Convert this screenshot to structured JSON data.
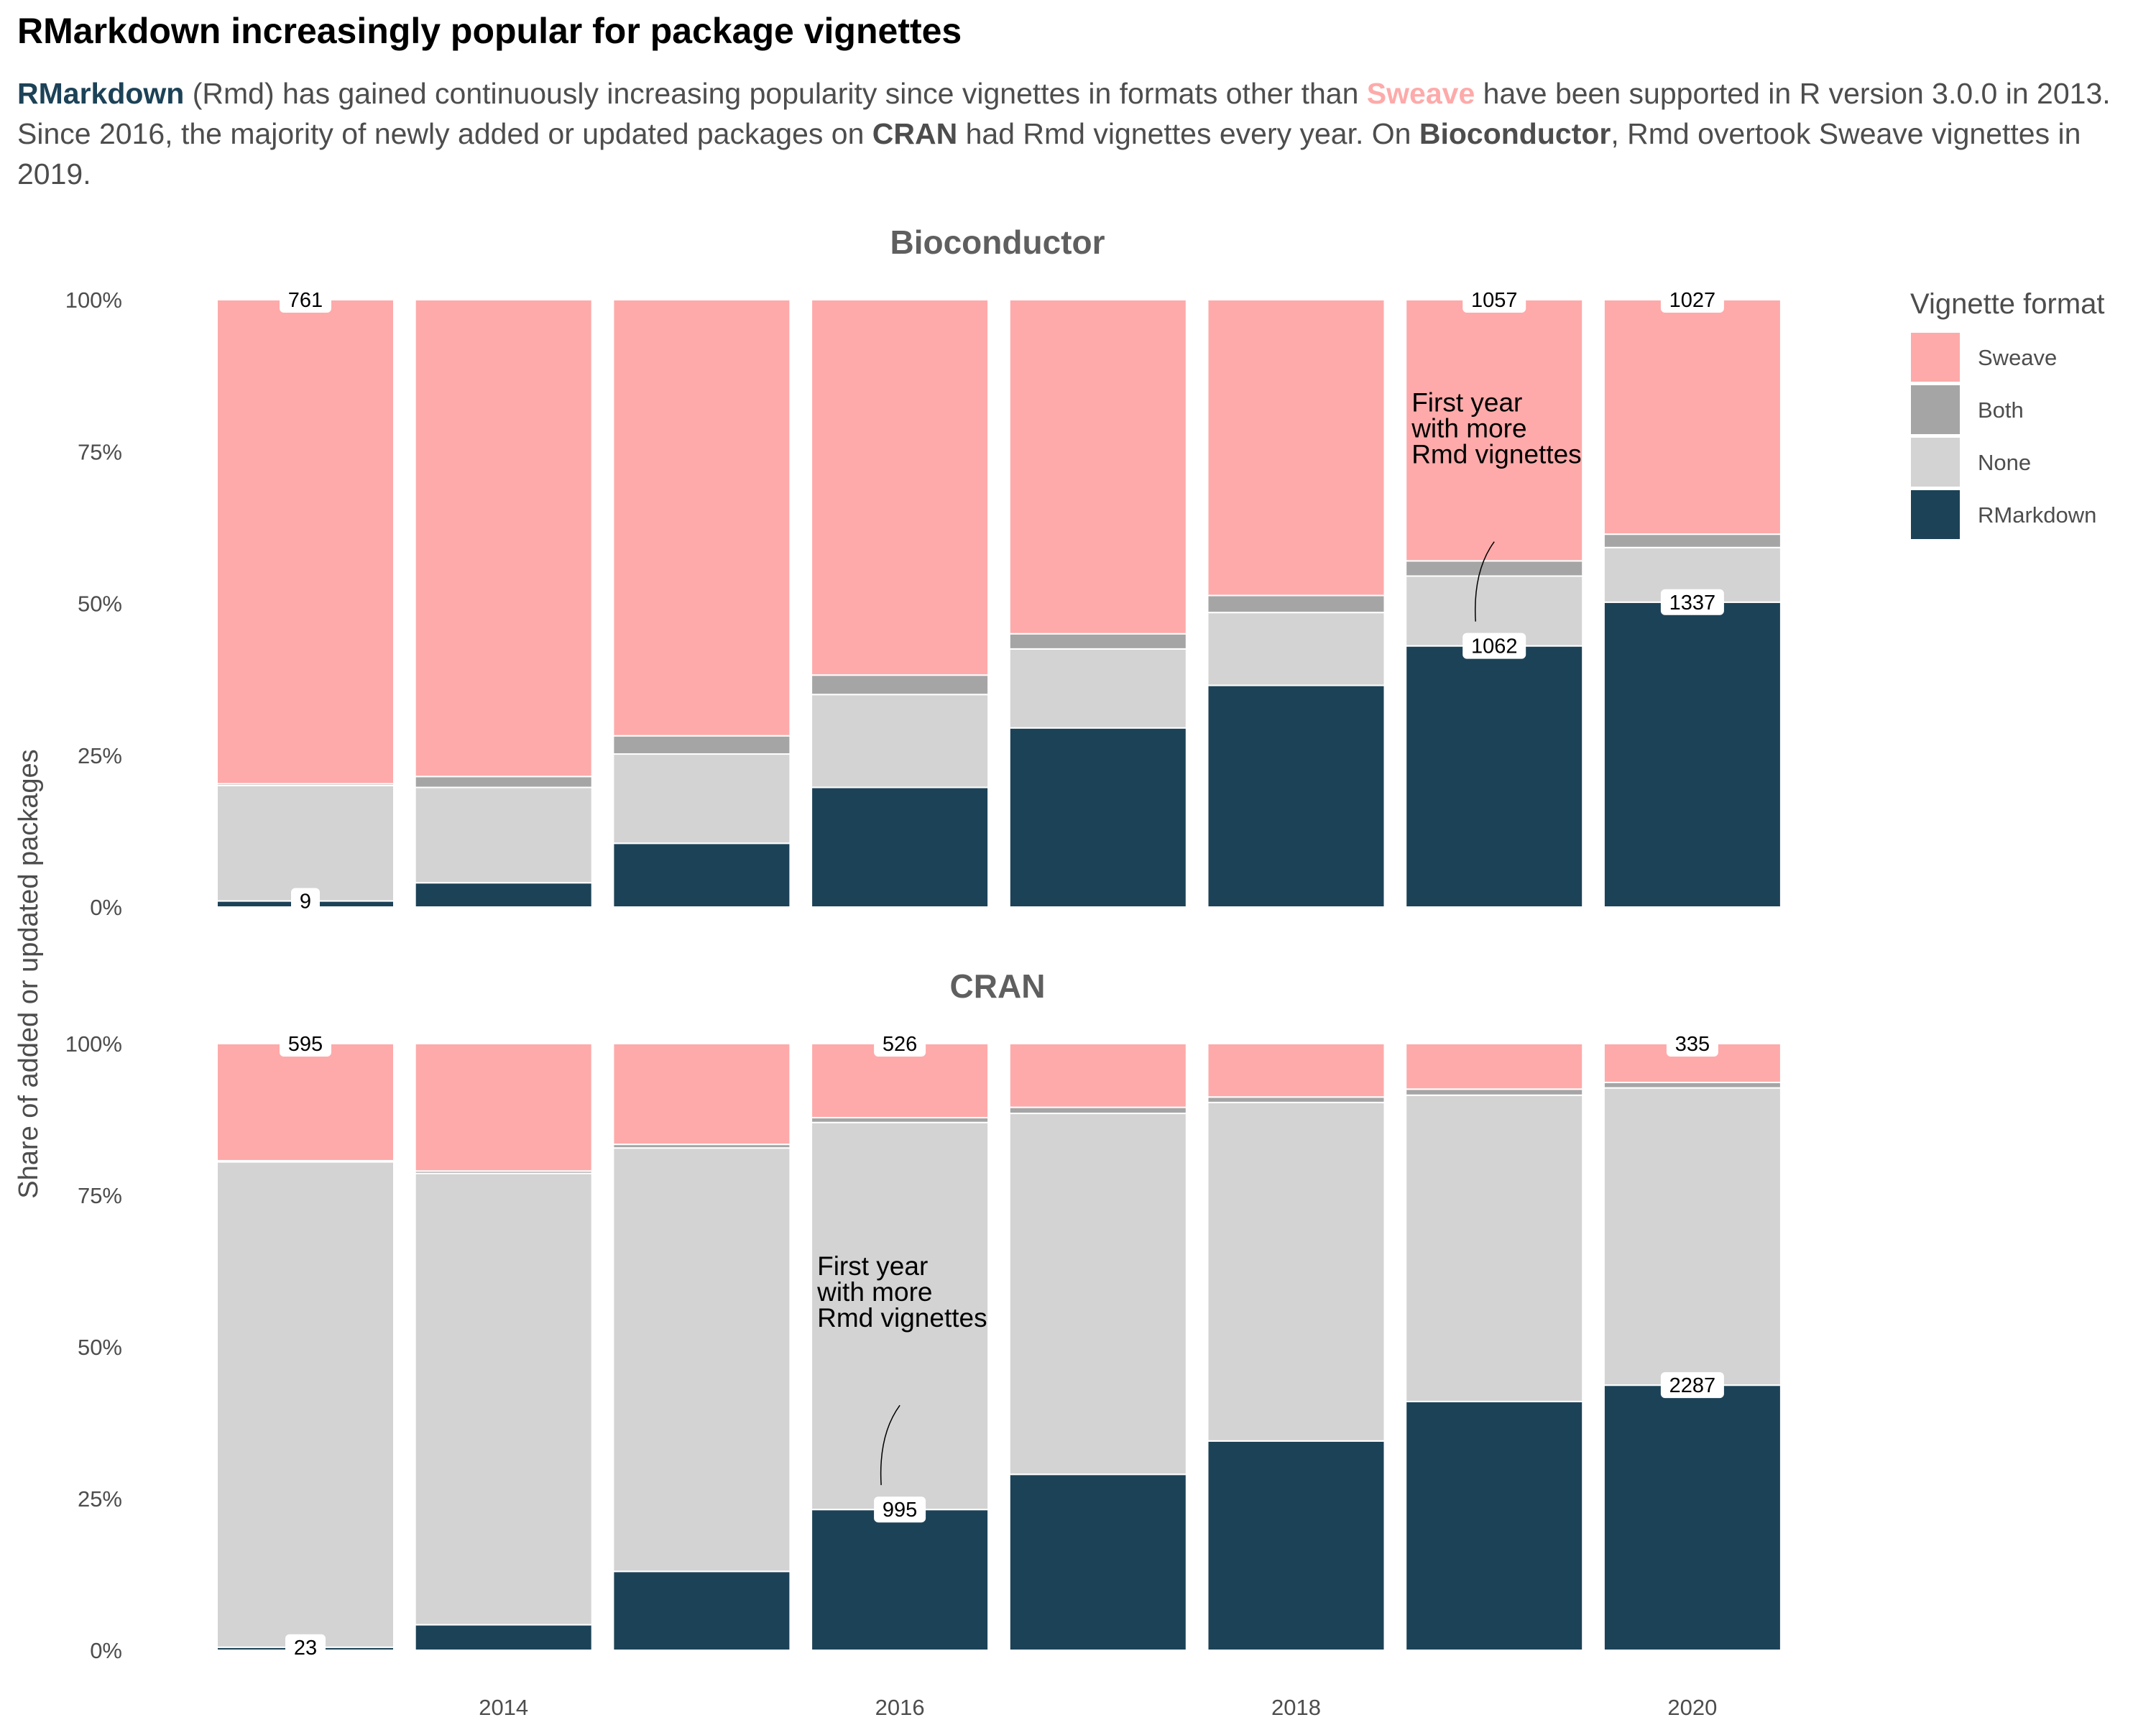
{
  "title": "RMarkdown increasingly popular for package vignettes",
  "subtitle": {
    "p1": "RMarkdown",
    "p2": " (Rmd) has gained continuously increasing popularity since vignettes in formats other than ",
    "p3": "Sweave",
    "p4": " have been supported in R version 3.0.0 in 2013. Since 2016, the majority of newly added or updated packages on ",
    "p5": "CRAN",
    "p6": " had Rmd vignettes every year. On ",
    "p7": "Bioconductor",
    "p8": ", Rmd overtook Sweave vignettes in 2019."
  },
  "colors": {
    "RMarkdown": "#1c4257",
    "None": "#d3d3d3",
    "Both": "#a5a5a5",
    "Sweave": "#feaaaa"
  },
  "chart_data": {
    "type": "bar",
    "stacking": "percent",
    "ylabel": "Share of added or updated packages",
    "xlabel": "",
    "x_ticks": [
      "2014",
      "2016",
      "2018",
      "2020"
    ],
    "y_ticks": [
      "0%",
      "25%",
      "50%",
      "75%",
      "100%"
    ],
    "ylim": [
      0,
      1
    ],
    "legend": {
      "title": "Vignette format",
      "position": "right",
      "order": [
        "Sweave",
        "Both",
        "None",
        "RMarkdown"
      ]
    },
    "panels": [
      {
        "name": "Bioconductor",
        "years": [
          2013,
          2014,
          2015,
          2016,
          2017,
          2018,
          2019,
          2020
        ],
        "series": [
          {
            "name": "RMarkdown",
            "values": [
              0.01,
              0.04,
              0.105,
              0.197,
              0.295,
              0.365,
              0.43,
              0.502
            ]
          },
          {
            "name": "None",
            "values": [
              0.19,
              0.157,
              0.147,
              0.153,
              0.13,
              0.12,
              0.115,
              0.09
            ]
          },
          {
            "name": "Both",
            "values": [
              0.003,
              0.018,
              0.03,
              0.032,
              0.025,
              0.028,
              0.025,
              0.022
            ]
          },
          {
            "name": "Sweave",
            "values": [
              0.797,
              0.785,
              0.718,
              0.618,
              0.55,
              0.487,
              0.43,
              0.386
            ]
          }
        ],
        "labels": [
          {
            "year": 2013,
            "series": "Sweave",
            "text": "761"
          },
          {
            "year": 2013,
            "series": "RMarkdown",
            "text": "9"
          },
          {
            "year": 2019,
            "series": "Sweave",
            "text": "1057"
          },
          {
            "year": 2019,
            "series": "RMarkdown",
            "text": "1062"
          },
          {
            "year": 2020,
            "series": "Sweave",
            "text": "1027"
          },
          {
            "year": 2020,
            "series": "RMarkdown",
            "text": "1337"
          }
        ],
        "annotation": {
          "year": 2019,
          "lines": [
            "First year",
            "with more",
            "Rmd vignettes"
          ]
        }
      },
      {
        "name": "CRAN",
        "years": [
          2013,
          2014,
          2015,
          2016,
          2017,
          2018,
          2019,
          2020
        ],
        "series": [
          {
            "name": "RMarkdown",
            "values": [
              0.005,
              0.042,
              0.13,
              0.232,
              0.29,
              0.345,
              0.41,
              0.437
            ]
          },
          {
            "name": "None",
            "values": [
              0.8,
              0.744,
              0.698,
              0.638,
              0.595,
              0.558,
              0.505,
              0.49
            ]
          },
          {
            "name": "Both",
            "values": [
              0.002,
              0.004,
              0.006,
              0.008,
              0.01,
              0.009,
              0.01,
              0.009
            ]
          },
          {
            "name": "Sweave",
            "values": [
              0.193,
              0.21,
              0.166,
              0.122,
              0.105,
              0.088,
              0.075,
              0.064
            ]
          }
        ],
        "labels": [
          {
            "year": 2013,
            "series": "Sweave",
            "text": "595"
          },
          {
            "year": 2013,
            "series": "RMarkdown",
            "text": "23"
          },
          {
            "year": 2016,
            "series": "Sweave",
            "text": "526"
          },
          {
            "year": 2016,
            "series": "RMarkdown",
            "text": "995"
          },
          {
            "year": 2020,
            "series": "Sweave",
            "text": "335"
          },
          {
            "year": 2020,
            "series": "RMarkdown",
            "text": "2287"
          }
        ],
        "annotation": {
          "year": 2016,
          "lines": [
            "First year",
            "with more",
            "Rmd vignettes"
          ]
        }
      }
    ]
  }
}
